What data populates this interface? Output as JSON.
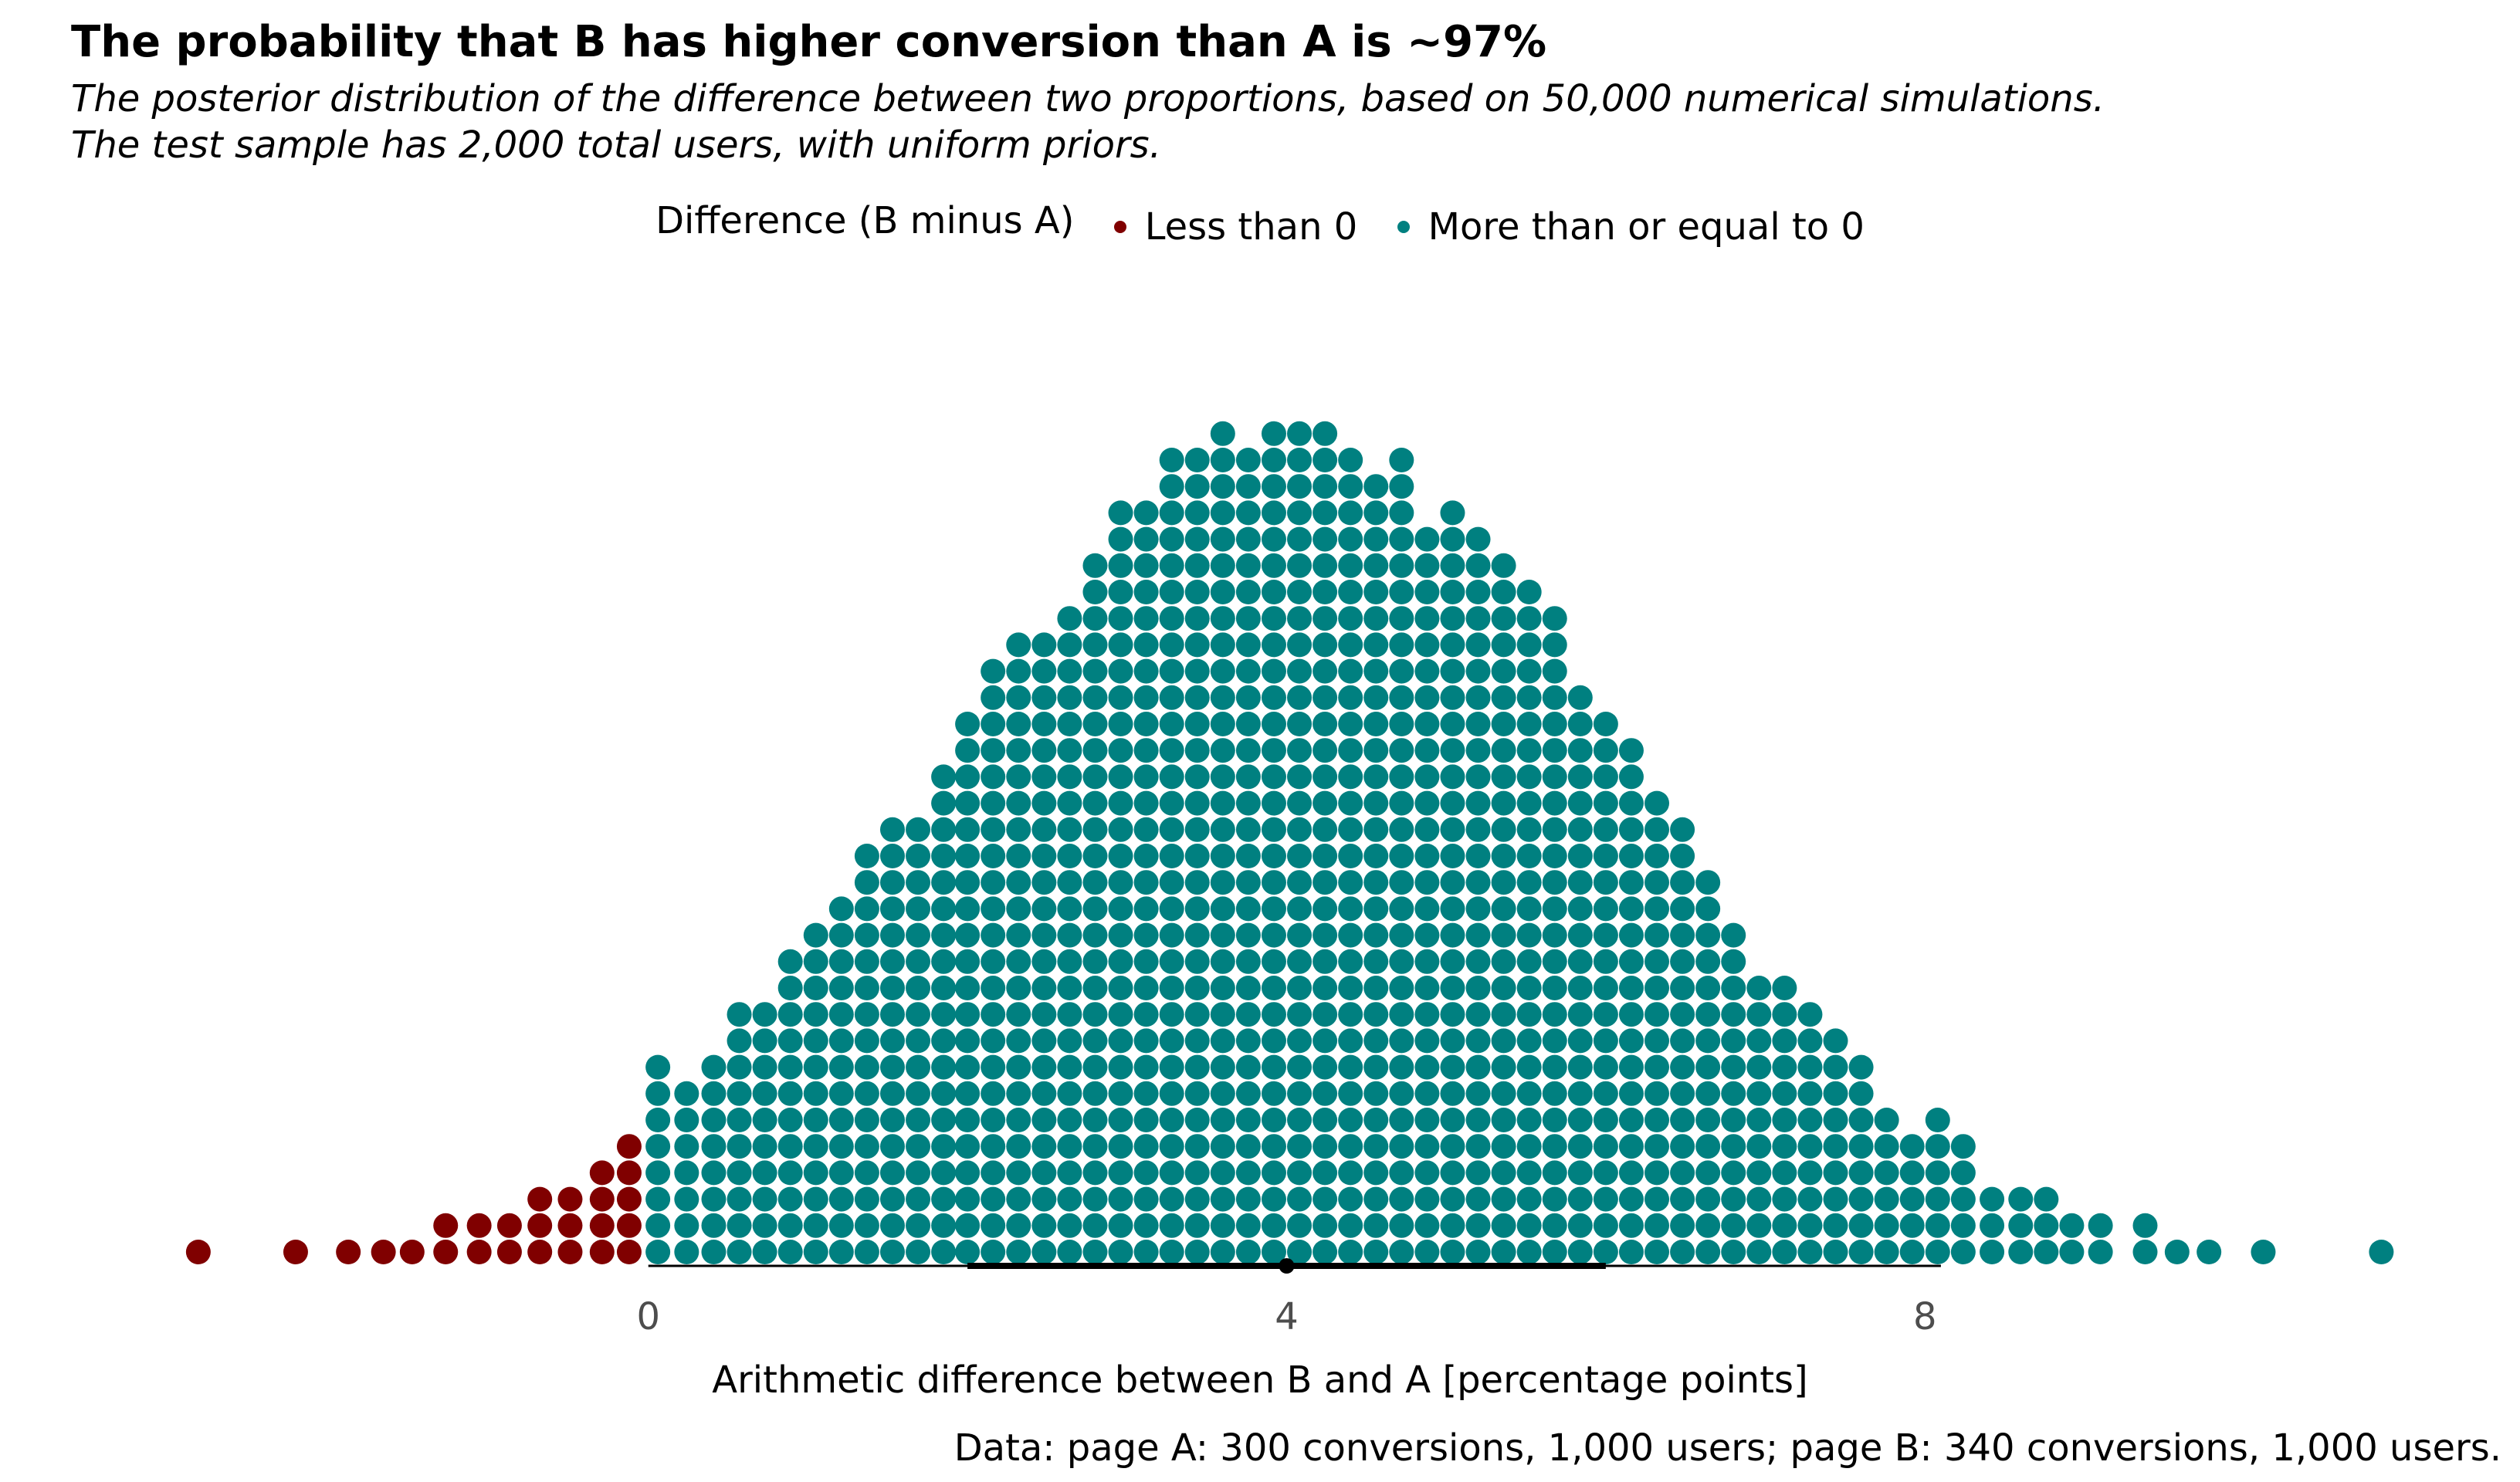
{
  "chart_data": {
    "type": "dotplot",
    "title": "The probability that B has higher conversion than A is ~97%",
    "subtitle_line1": "The posterior distribution of the difference between two proportions, based on 50,000 numerical simulations.",
    "subtitle_line2": "The test sample has 2,000 total users, with uniform priors.",
    "xlabel": "Arithmetic difference between B and A [percentage points]",
    "caption": "Data: page A: 300 conversions, 1,000 users; page B: 340 conversions, 1,000 users.",
    "legend": {
      "title": "Difference (B minus A)",
      "position": "top",
      "entries": [
        {
          "label": "Less than 0",
          "color": "#800000"
        },
        {
          "label": "More than or equal to 0",
          "color": "#008080"
        }
      ]
    },
    "xlim": [
      -2.95,
      10.95
    ],
    "xticks": [
      {
        "value": 0,
        "label": "0"
      },
      {
        "value": 4,
        "label": "4"
      },
      {
        "value": 8,
        "label": "8"
      }
    ],
    "grid": false,
    "interval": {
      "lower": 2.0,
      "upper": 6.0,
      "outer_lower": 0.0,
      "outer_upper": 8.1,
      "center": 4.0
    },
    "bin_width": 0.158,
    "dot_columns": [
      {
        "x": -2.82,
        "count": 1
      },
      {
        "x": -2.21,
        "count": 1
      },
      {
        "x": -1.88,
        "count": 1
      },
      {
        "x": -1.66,
        "count": 1
      },
      {
        "x": -1.48,
        "count": 1
      },
      {
        "x": -1.27,
        "count": 2
      },
      {
        "x": -1.06,
        "count": 2
      },
      {
        "x": -0.87,
        "count": 2
      },
      {
        "x": -0.68,
        "count": 3
      },
      {
        "x": -0.69,
        "count": 0
      },
      {
        "x": -0.49,
        "count": 3
      },
      {
        "x": -0.29,
        "count": 4
      },
      {
        "x": -0.12,
        "count": 5
      },
      {
        "x": 0.06,
        "count": 8
      },
      {
        "x": 0.24,
        "count": 7
      },
      {
        "x": 0.41,
        "count": 8
      },
      {
        "x": 0.57,
        "count": 10
      },
      {
        "x": 0.73,
        "count": 10
      },
      {
        "x": 0.89,
        "count": 12
      },
      {
        "x": 1.05,
        "count": 13
      },
      {
        "x": 1.21,
        "count": 14
      },
      {
        "x": 1.37,
        "count": 16
      },
      {
        "x": 1.53,
        "count": 17
      },
      {
        "x": 1.69,
        "count": 17
      },
      {
        "x": 1.85,
        "count": 19
      },
      {
        "x": 2.0,
        "count": 21
      },
      {
        "x": 2.16,
        "count": 23
      },
      {
        "x": 2.32,
        "count": 24
      },
      {
        "x": 2.48,
        "count": 24
      },
      {
        "x": 2.64,
        "count": 25
      },
      {
        "x": 2.8,
        "count": 27
      },
      {
        "x": 2.96,
        "count": 29
      },
      {
        "x": 3.12,
        "count": 29
      },
      {
        "x": 3.28,
        "count": 31
      },
      {
        "x": 3.44,
        "count": 31
      },
      {
        "x": 3.6,
        "count": 32
      },
      {
        "x": 3.76,
        "count": 31
      },
      {
        "x": 3.92,
        "count": 32
      },
      {
        "x": 4.08,
        "count": 32
      },
      {
        "x": 4.24,
        "count": 32
      },
      {
        "x": 4.4,
        "count": 31
      },
      {
        "x": 4.56,
        "count": 30
      },
      {
        "x": 4.72,
        "count": 31
      },
      {
        "x": 4.88,
        "count": 28
      },
      {
        "x": 5.04,
        "count": 29
      },
      {
        "x": 5.2,
        "count": 28
      },
      {
        "x": 5.36,
        "count": 27
      },
      {
        "x": 5.52,
        "count": 26
      },
      {
        "x": 5.68,
        "count": 25
      },
      {
        "x": 5.84,
        "count": 22
      },
      {
        "x": 6.0,
        "count": 21
      },
      {
        "x": 6.16,
        "count": 20
      },
      {
        "x": 6.32,
        "count": 18
      },
      {
        "x": 6.48,
        "count": 17
      },
      {
        "x": 6.64,
        "count": 15
      },
      {
        "x": 6.8,
        "count": 13
      },
      {
        "x": 6.96,
        "count": 11
      },
      {
        "x": 7.12,
        "count": 11
      },
      {
        "x": 7.28,
        "count": 10
      },
      {
        "x": 7.44,
        "count": 9
      },
      {
        "x": 7.6,
        "count": 8
      },
      {
        "x": 7.76,
        "count": 6
      },
      {
        "x": 7.92,
        "count": 5
      },
      {
        "x": 8.08,
        "count": 6
      },
      {
        "x": 8.24,
        "count": 5
      },
      {
        "x": 8.42,
        "count": 3
      },
      {
        "x": 8.6,
        "count": 3
      },
      {
        "x": 8.76,
        "count": 3
      },
      {
        "x": 8.92,
        "count": 2
      },
      {
        "x": 9.1,
        "count": 2
      },
      {
        "x": 9.38,
        "count": 2
      },
      {
        "x": 9.58,
        "count": 1
      },
      {
        "x": 9.78,
        "count": 1
      },
      {
        "x": 10.12,
        "count": 1
      },
      {
        "x": 10.86,
        "count": 1
      }
    ]
  }
}
